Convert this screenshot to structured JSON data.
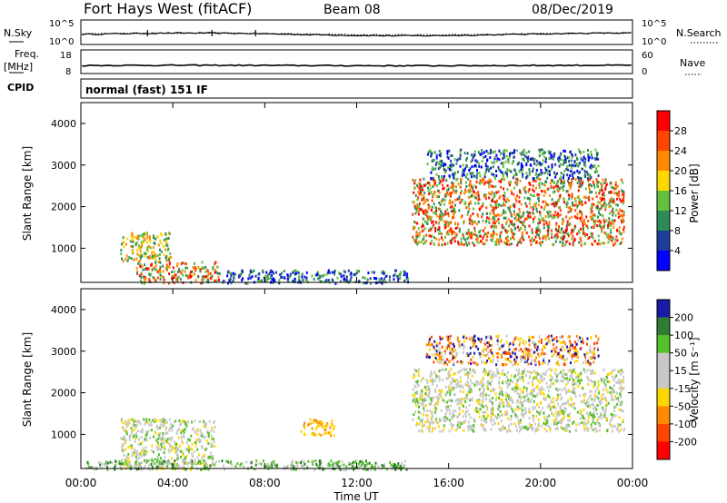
{
  "header": {
    "radar": "Fort Hays West (fitACF)",
    "beam": "Beam 08",
    "date": "08/Dec/2019"
  },
  "params": {
    "nsky_label": "N.Sky",
    "nsky_ticks": [
      "10^5",
      "10^0"
    ],
    "nsearch_label": "N.Search",
    "nsearch_ticks": [
      "10^5",
      "10^0"
    ],
    "freq_label_1": "Freq.",
    "freq_label_2": "[MHz]",
    "freq_ticks": [
      "18",
      "8"
    ],
    "nave_label": "Nave",
    "nave_ticks": [
      "60",
      "0"
    ],
    "cpid_label": "CPID",
    "cpid_text": "normal (fast) 151 IF"
  },
  "axes": {
    "ylabel": "Slant Range [km]",
    "yticks": [
      "4000",
      "3000",
      "2000",
      "1000"
    ],
    "xticks": [
      "00:00",
      "04:00",
      "08:00",
      "12:00",
      "16:00",
      "20:00",
      "00:00"
    ],
    "xlabel": "Time UT"
  },
  "power_scale": {
    "label": "Power [dB]",
    "ticks": [
      "28",
      "24",
      "20",
      "16",
      "12",
      "8",
      "4"
    ],
    "colors": [
      "#ff0000",
      "#ff4500",
      "#ff8c00",
      "#ffd700",
      "#66c040",
      "#2e8b57",
      "#1e3c9a",
      "#0000ff"
    ]
  },
  "velocity_scale": {
    "label": "Velocity [m s⁻¹]",
    "ticks": [
      "200",
      "100",
      "50",
      "15",
      "-15",
      "-50",
      "-100",
      "-200"
    ],
    "colors": [
      "#1a1aa8",
      "#2e7d32",
      "#56c02c",
      "#c8c8c8",
      "#c8c8c8",
      "#ffd700",
      "#ff8c00",
      "#ff4500",
      "#ff0000"
    ]
  },
  "chart_data": {
    "type": "heatmap",
    "x_range_hours": [
      0,
      24
    ],
    "y_range_km": [
      180,
      4500
    ],
    "panels": [
      {
        "name": "Power",
        "units": "dB",
        "scatter_regions": [
          {
            "t_start": 1.7,
            "t_end": 3.9,
            "r_min": 700,
            "r_max": 1400,
            "level": "medium"
          },
          {
            "t_start": 2.4,
            "t_end": 6.0,
            "r_min": 180,
            "r_max": 700,
            "level": "high"
          },
          {
            "t_start": 6.0,
            "t_end": 14.2,
            "r_min": 180,
            "r_max": 500,
            "level": "low"
          },
          {
            "t_start": 14.4,
            "t_end": 23.6,
            "r_min": 1100,
            "r_max": 2700,
            "level": "high"
          },
          {
            "t_start": 15.0,
            "t_end": 22.5,
            "r_min": 2700,
            "r_max": 3400,
            "level": "low"
          }
        ]
      },
      {
        "name": "Velocity",
        "units": "m/s",
        "scatter_regions": [
          {
            "t_start": 1.7,
            "t_end": 5.8,
            "r_min": 180,
            "r_max": 1400,
            "level": "near-zero"
          },
          {
            "t_start": 0.2,
            "t_end": 14.2,
            "r_min": 180,
            "r_max": 400,
            "level": "positive"
          },
          {
            "t_start": 9.5,
            "t_end": 11.0,
            "r_min": 1000,
            "r_max": 1400,
            "level": "negative"
          },
          {
            "t_start": 14.4,
            "t_end": 23.6,
            "r_min": 1100,
            "r_max": 2600,
            "level": "near-zero"
          },
          {
            "t_start": 15.0,
            "t_end": 22.5,
            "r_min": 2700,
            "r_max": 3400,
            "level": "mixed"
          }
        ]
      }
    ]
  }
}
